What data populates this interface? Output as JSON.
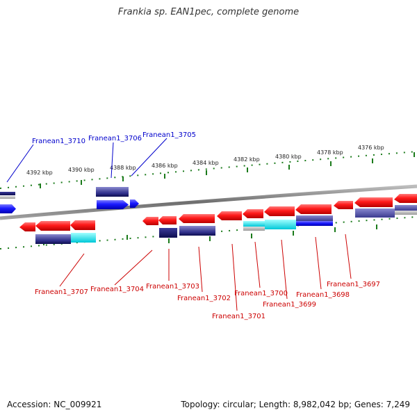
{
  "title": "Frankia sp. EAN1pec, complete genome",
  "footer": {
    "accession": "Accession: NC_009921",
    "summary": "Topology: circular; Length: 8,982,042 bp; Genes: 7,249"
  },
  "colors": {
    "forward_gene": "#1a1aff",
    "reverse_gene": "#ff1a1a",
    "forward_label": "#0000cc",
    "reverse_label": "#cc0000",
    "tick": "#1a7a1a",
    "backbone": "#808080",
    "annotation_dark": "#1a1a6e",
    "annotation_mid": "#4a4aa0",
    "annotation_cyan": "#00e5ee"
  },
  "ruler_labels": [
    "4392 kbp",
    "4390 kbp",
    "4388 kbp",
    "4386 kbp",
    "4384 kbp",
    "4382 kbp",
    "4380 kbp",
    "4378 kbp",
    "4376 kbp"
  ],
  "forward_labels": [
    "Franean1_3710",
    "Franean1_3706",
    "Franean1_3705"
  ],
  "reverse_labels": [
    "Franean1_3707",
    "Franean1_3704",
    "Franean1_3703",
    "Franean1_3702",
    "Franean1_3701",
    "Franean1_3700",
    "Franean1_3699",
    "Franean1_3698",
    "Franean1_3697"
  ]
}
